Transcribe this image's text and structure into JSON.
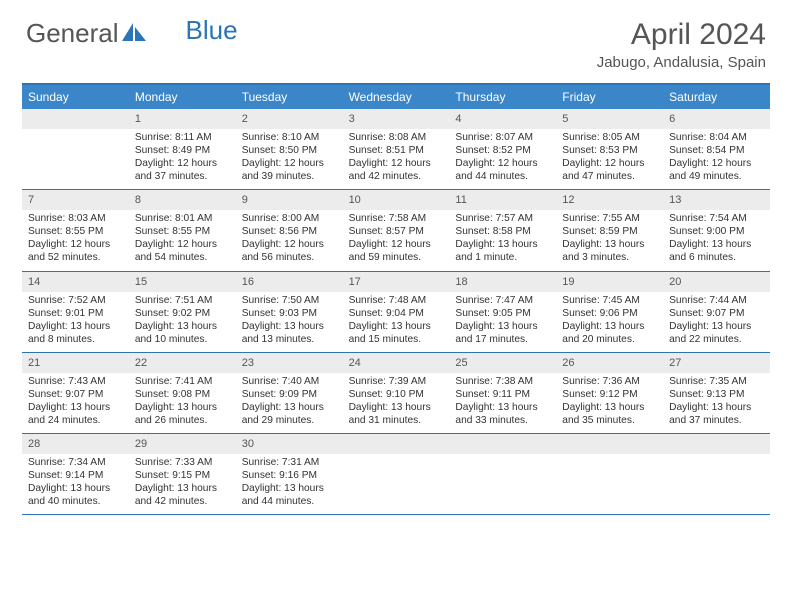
{
  "logo": {
    "text1": "General",
    "text2": "Blue"
  },
  "title": "April 2024",
  "location": "Jabugo, Andalusia, Spain",
  "day_names": [
    "Sunday",
    "Monday",
    "Tuesday",
    "Wednesday",
    "Thursday",
    "Friday",
    "Saturday"
  ],
  "colors": {
    "header_bg": "#3b86c8",
    "rule": "#2b74b8",
    "daynum_bg": "#ececec"
  },
  "leading_blanks": 1,
  "days": [
    {
      "n": "1",
      "sunrise": "8:11 AM",
      "sunset": "8:49 PM",
      "daylight": "12 hours and 37 minutes."
    },
    {
      "n": "2",
      "sunrise": "8:10 AM",
      "sunset": "8:50 PM",
      "daylight": "12 hours and 39 minutes."
    },
    {
      "n": "3",
      "sunrise": "8:08 AM",
      "sunset": "8:51 PM",
      "daylight": "12 hours and 42 minutes."
    },
    {
      "n": "4",
      "sunrise": "8:07 AM",
      "sunset": "8:52 PM",
      "daylight": "12 hours and 44 minutes."
    },
    {
      "n": "5",
      "sunrise": "8:05 AM",
      "sunset": "8:53 PM",
      "daylight": "12 hours and 47 minutes."
    },
    {
      "n": "6",
      "sunrise": "8:04 AM",
      "sunset": "8:54 PM",
      "daylight": "12 hours and 49 minutes."
    },
    {
      "n": "7",
      "sunrise": "8:03 AM",
      "sunset": "8:55 PM",
      "daylight": "12 hours and 52 minutes."
    },
    {
      "n": "8",
      "sunrise": "8:01 AM",
      "sunset": "8:55 PM",
      "daylight": "12 hours and 54 minutes."
    },
    {
      "n": "9",
      "sunrise": "8:00 AM",
      "sunset": "8:56 PM",
      "daylight": "12 hours and 56 minutes."
    },
    {
      "n": "10",
      "sunrise": "7:58 AM",
      "sunset": "8:57 PM",
      "daylight": "12 hours and 59 minutes."
    },
    {
      "n": "11",
      "sunrise": "7:57 AM",
      "sunset": "8:58 PM",
      "daylight": "13 hours and 1 minute."
    },
    {
      "n": "12",
      "sunrise": "7:55 AM",
      "sunset": "8:59 PM",
      "daylight": "13 hours and 3 minutes."
    },
    {
      "n": "13",
      "sunrise": "7:54 AM",
      "sunset": "9:00 PM",
      "daylight": "13 hours and 6 minutes."
    },
    {
      "n": "14",
      "sunrise": "7:52 AM",
      "sunset": "9:01 PM",
      "daylight": "13 hours and 8 minutes."
    },
    {
      "n": "15",
      "sunrise": "7:51 AM",
      "sunset": "9:02 PM",
      "daylight": "13 hours and 10 minutes."
    },
    {
      "n": "16",
      "sunrise": "7:50 AM",
      "sunset": "9:03 PM",
      "daylight": "13 hours and 13 minutes."
    },
    {
      "n": "17",
      "sunrise": "7:48 AM",
      "sunset": "9:04 PM",
      "daylight": "13 hours and 15 minutes."
    },
    {
      "n": "18",
      "sunrise": "7:47 AM",
      "sunset": "9:05 PM",
      "daylight": "13 hours and 17 minutes."
    },
    {
      "n": "19",
      "sunrise": "7:45 AM",
      "sunset": "9:06 PM",
      "daylight": "13 hours and 20 minutes."
    },
    {
      "n": "20",
      "sunrise": "7:44 AM",
      "sunset": "9:07 PM",
      "daylight": "13 hours and 22 minutes."
    },
    {
      "n": "21",
      "sunrise": "7:43 AM",
      "sunset": "9:07 PM",
      "daylight": "13 hours and 24 minutes."
    },
    {
      "n": "22",
      "sunrise": "7:41 AM",
      "sunset": "9:08 PM",
      "daylight": "13 hours and 26 minutes."
    },
    {
      "n": "23",
      "sunrise": "7:40 AM",
      "sunset": "9:09 PM",
      "daylight": "13 hours and 29 minutes."
    },
    {
      "n": "24",
      "sunrise": "7:39 AM",
      "sunset": "9:10 PM",
      "daylight": "13 hours and 31 minutes."
    },
    {
      "n": "25",
      "sunrise": "7:38 AM",
      "sunset": "9:11 PM",
      "daylight": "13 hours and 33 minutes."
    },
    {
      "n": "26",
      "sunrise": "7:36 AM",
      "sunset": "9:12 PM",
      "daylight": "13 hours and 35 minutes."
    },
    {
      "n": "27",
      "sunrise": "7:35 AM",
      "sunset": "9:13 PM",
      "daylight": "13 hours and 37 minutes."
    },
    {
      "n": "28",
      "sunrise": "7:34 AM",
      "sunset": "9:14 PM",
      "daylight": "13 hours and 40 minutes."
    },
    {
      "n": "29",
      "sunrise": "7:33 AM",
      "sunset": "9:15 PM",
      "daylight": "13 hours and 42 minutes."
    },
    {
      "n": "30",
      "sunrise": "7:31 AM",
      "sunset": "9:16 PM",
      "daylight": "13 hours and 44 minutes."
    }
  ],
  "labels": {
    "sunrise": "Sunrise:",
    "sunset": "Sunset:",
    "daylight": "Daylight:"
  }
}
